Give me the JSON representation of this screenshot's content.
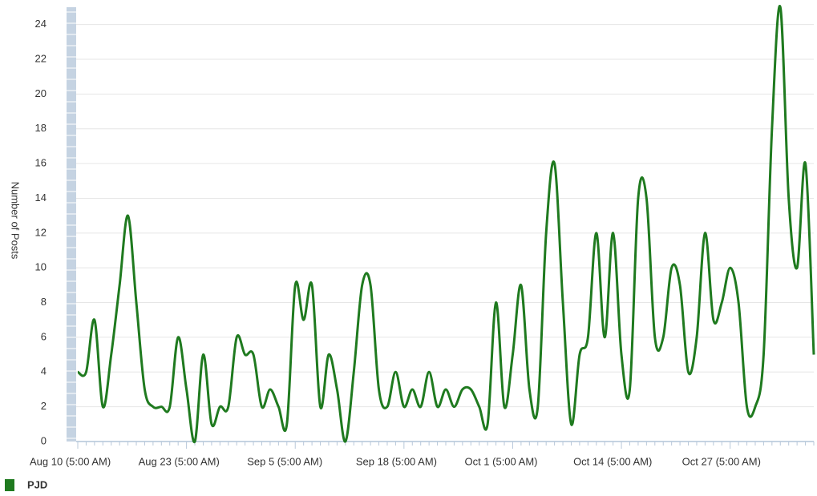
{
  "chart_data": {
    "type": "line",
    "y_label": "Number of Posts",
    "categories": [
      "Aug 10 (5:00 AM)",
      null,
      null,
      null,
      null,
      null,
      null,
      null,
      null,
      null,
      null,
      null,
      null,
      "Aug 23 (5:00 AM)",
      null,
      null,
      null,
      null,
      null,
      null,
      null,
      null,
      null,
      null,
      null,
      null,
      "Sep 5 (5:00 AM)",
      null,
      null,
      null,
      null,
      null,
      null,
      null,
      null,
      null,
      null,
      null,
      null,
      "Sep 18 (5:00 AM)",
      null,
      null,
      null,
      null,
      null,
      null,
      null,
      null,
      null,
      null,
      null,
      null,
      "Oct 1 (5:00 AM)",
      null,
      null,
      null,
      null,
      null,
      null,
      null,
      null,
      null,
      null,
      null,
      null,
      "Oct 14 (5:00 AM)",
      null,
      null,
      null,
      null,
      null,
      null,
      null,
      null,
      null,
      null,
      null,
      null,
      "Oct 27 (5:00 AM)",
      null,
      null,
      null,
      null,
      null,
      null,
      null,
      null,
      null,
      null
    ],
    "series": [
      {
        "name": "PJD",
        "color": "#1f7a1f",
        "values": [
          4,
          4,
          7,
          2,
          5,
          9,
          13,
          8,
          3,
          2,
          2,
          2,
          6,
          3,
          0,
          5,
          1,
          2,
          2,
          6,
          5,
          5,
          2,
          3,
          2,
          1,
          9,
          7,
          9,
          2,
          5,
          3,
          0,
          4,
          9,
          9,
          3,
          2,
          4,
          2,
          3,
          2,
          4,
          2,
          3,
          2,
          3,
          3,
          2,
          1,
          8,
          2,
          5,
          9,
          3,
          2,
          12,
          16,
          8,
          1,
          5,
          6,
          12,
          6,
          12,
          5,
          3,
          14,
          14,
          6,
          6,
          10,
          9,
          4,
          6,
          12,
          7,
          8,
          10,
          8,
          2,
          2,
          5,
          18,
          25,
          14,
          10,
          16,
          5
        ]
      }
    ],
    "ylim": [
      0,
      25
    ],
    "yticks": [
      0,
      2,
      4,
      6,
      8,
      10,
      12,
      14,
      16,
      18,
      20,
      22,
      24
    ],
    "grid": true
  }
}
